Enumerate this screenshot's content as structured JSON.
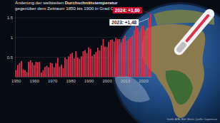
{
  "chart_data": {
    "type": "bar",
    "title": [
      "Änderung der weltweiten Durchschnittstemperatur",
      "gegenüber dem Zeitraum 1850 bis 1900 in Grad Celsius"
    ],
    "x": [
      1950,
      1951,
      1952,
      1953,
      1954,
      1955,
      1956,
      1957,
      1958,
      1959,
      1960,
      1961,
      1962,
      1963,
      1964,
      1965,
      1966,
      1967,
      1968,
      1969,
      1970,
      1971,
      1972,
      1973,
      1974,
      1975,
      1976,
      1977,
      1978,
      1979,
      1980,
      1981,
      1982,
      1983,
      1984,
      1985,
      1986,
      1987,
      1988,
      1989,
      1990,
      1991,
      1992,
      1993,
      1994,
      1995,
      1996,
      1997,
      1998,
      1999,
      2000,
      2001,
      2002,
      2003,
      2004,
      2005,
      2006,
      2007,
      2008,
      2009,
      2010,
      2011,
      2012,
      2013,
      2014,
      2015,
      2016,
      2017,
      2018,
      2019,
      2020,
      2021,
      2022,
      2023,
      2024
    ],
    "values": [
      0.17,
      0.3,
      0.35,
      0.4,
      0.19,
      0.17,
      0.12,
      0.38,
      0.42,
      0.36,
      0.3,
      0.38,
      0.37,
      0.38,
      0.11,
      0.17,
      0.25,
      0.28,
      0.24,
      0.36,
      0.34,
      0.24,
      0.35,
      0.48,
      0.26,
      0.31,
      0.22,
      0.49,
      0.45,
      0.52,
      0.58,
      0.61,
      0.47,
      0.65,
      0.49,
      0.46,
      0.52,
      0.65,
      0.68,
      0.6,
      0.75,
      0.71,
      0.53,
      0.57,
      0.63,
      0.74,
      0.67,
      0.8,
      0.96,
      0.77,
      0.76,
      0.89,
      0.94,
      0.95,
      0.9,
      0.99,
      0.96,
      0.96,
      0.87,
      0.98,
      1.05,
      0.92,
      0.96,
      1.0,
      1.05,
      1.19,
      1.31,
      1.24,
      1.16,
      1.28,
      1.3,
      1.17,
      1.19,
      1.48,
      1.6
    ],
    "color": "#d9334b",
    "xlim": [
      1949.5,
      2024.5
    ],
    "xticks": [
      1950,
      1960,
      1970,
      1980,
      1990,
      2000,
      2010,
      2020
    ],
    "ylim": [
      0,
      1.7
    ],
    "yticks": [
      0.5,
      1,
      1.5
    ],
    "grid": true,
    "annotations": [
      {
        "text": "2024: +1,60",
        "x": 2024,
        "y": 1.6,
        "color": "#c8102e"
      },
      {
        "text": "2023: +1,48",
        "x": 2023,
        "y": 1.48,
        "color": "#ffffff"
      }
    ],
    "source": "Grafik: APA, Bild: iStock, Quelle: Copernicus"
  }
}
